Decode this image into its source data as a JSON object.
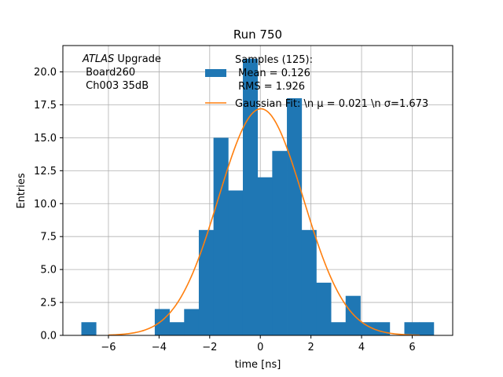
{
  "chart_data": {
    "type": "bar",
    "title": "Run 750",
    "xlabel": "time [ns]",
    "ylabel": "Entries",
    "xlim": [
      -7.8,
      7.6
    ],
    "ylim": [
      0,
      22
    ],
    "grid": true,
    "xticks": [
      -6,
      -4,
      -2,
      0,
      2,
      4,
      6
    ],
    "xtick_labels": [
      "−6",
      "−4",
      "−2",
      "0",
      "2",
      "4",
      "6"
    ],
    "yticks": [
      0,
      2.5,
      5,
      7.5,
      10,
      12.5,
      15,
      17.5,
      20
    ],
    "ytick_labels": [
      "0.0",
      "2.5",
      "5.0",
      "7.5",
      "10.0",
      "12.5",
      "15.0",
      "17.5",
      "20.0"
    ],
    "histogram": {
      "bin_edges": [
        -7.07,
        -6.49,
        -5.91,
        -5.33,
        -4.75,
        -4.17,
        -3.59,
        -3.01,
        -2.43,
        -1.85,
        -1.27,
        -0.69,
        -0.11,
        0.47,
        1.05,
        1.63,
        2.21,
        2.79,
        3.37,
        3.95,
        4.53,
        5.11,
        5.69,
        6.27,
        6.85
      ],
      "counts": [
        1,
        0,
        0,
        0,
        0,
        2,
        1,
        2,
        8,
        15,
        11,
        21,
        12,
        14,
        18,
        8,
        4,
        1,
        3,
        1,
        1,
        0,
        1,
        1
      ],
      "color": "#1f77b4"
    },
    "fit": {
      "type": "gaussian",
      "amplitude": 17.2,
      "mu": 0.021,
      "sigma": 1.673,
      "x_range": [
        -6.0,
        6.3
      ],
      "color": "#ff7f0e"
    },
    "legend": {
      "placement": "top-right",
      "entries": [
        {
          "kind": "patch",
          "color": "#1f77b4",
          "lines": [
            "Samples (125):",
            " Mean = 0.126",
            " RMS = 1.926"
          ]
        },
        {
          "kind": "line",
          "color": "#ff7f0e",
          "lines": [
            "Gaussian Fit: \\n μ = 0.021 \\n σ=1.673"
          ]
        }
      ]
    },
    "annotation": {
      "italic": "ATLAS",
      "rest": " Upgrade",
      "lines": [
        " Board260",
        " Ch003 35dB"
      ]
    }
  }
}
